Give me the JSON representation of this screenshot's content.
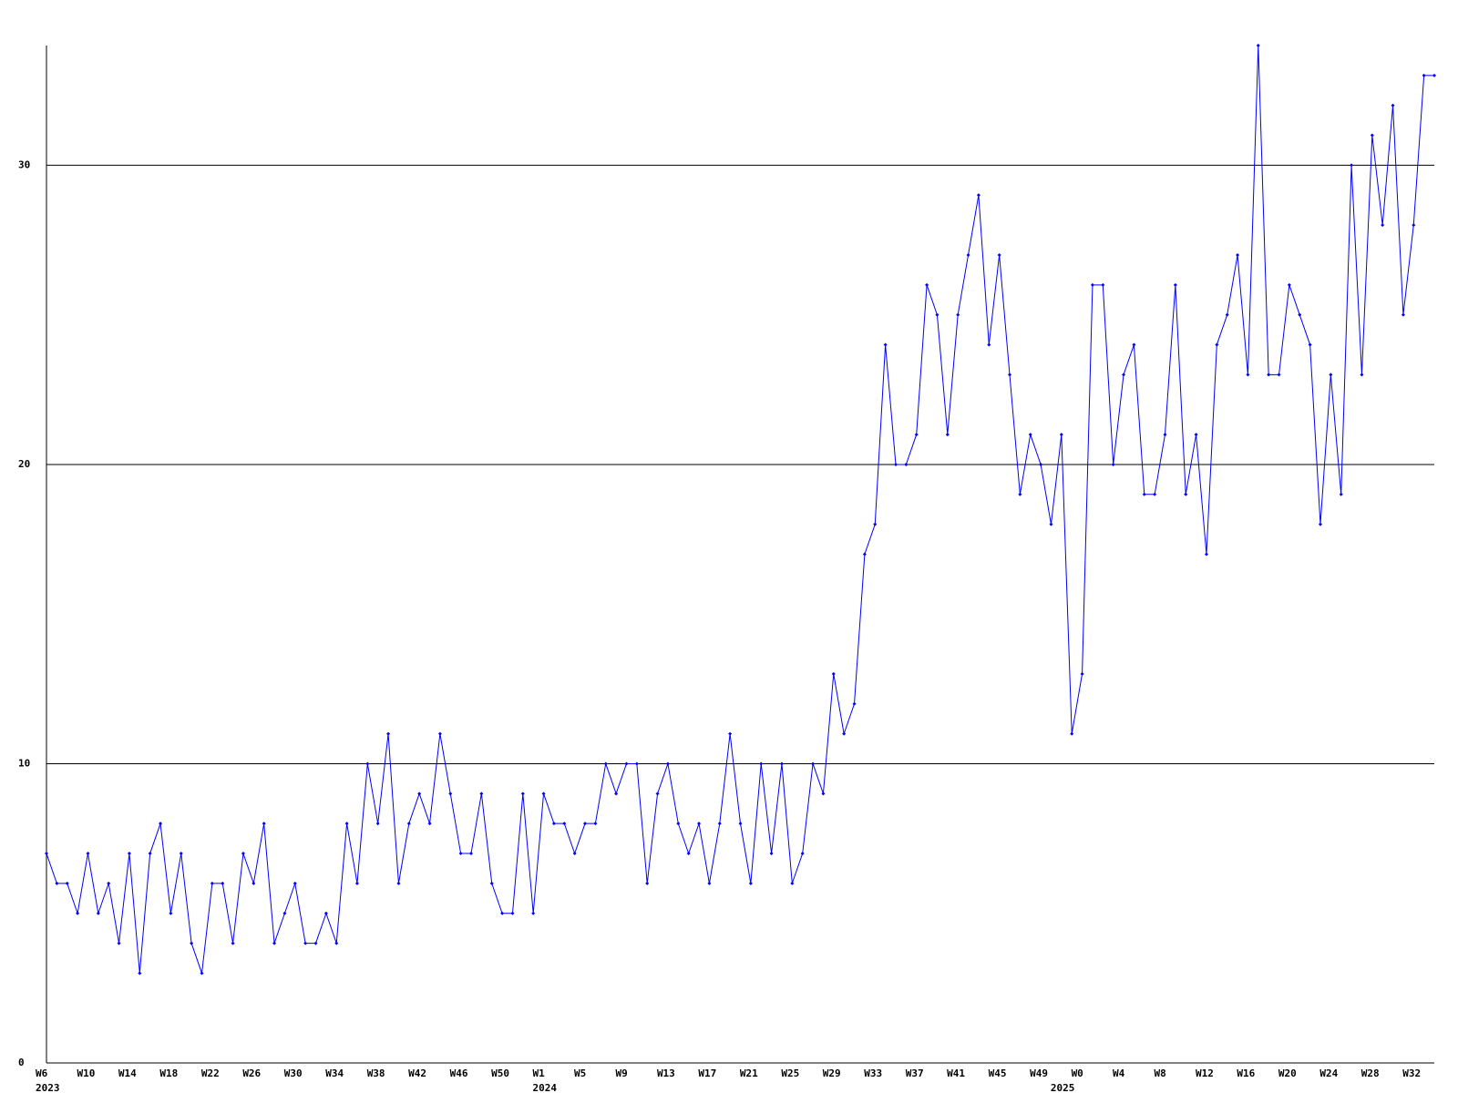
{
  "chart_data": {
    "type": "line",
    "categories": [
      "W6",
      null,
      null,
      null,
      "W10",
      null,
      null,
      null,
      "W14",
      null,
      null,
      null,
      "W18",
      null,
      null,
      null,
      "W22",
      null,
      null,
      null,
      "W26",
      null,
      null,
      null,
      "W30",
      null,
      null,
      null,
      "W34",
      null,
      null,
      null,
      "W38",
      null,
      null,
      null,
      "W42",
      null,
      null,
      null,
      "W46",
      null,
      null,
      null,
      "W50",
      null,
      null,
      null,
      "W1",
      null,
      null,
      null,
      "W5",
      null,
      null,
      null,
      "W9",
      null,
      null,
      null,
      "W13",
      null,
      null,
      null,
      "W17",
      null,
      null,
      null,
      "W21",
      null,
      null,
      null,
      "W25",
      null,
      null,
      null,
      "W29",
      null,
      null,
      null,
      "W33",
      null,
      null,
      null,
      "W37",
      null,
      null,
      null,
      "W41",
      null,
      null,
      null,
      "W45",
      null,
      null,
      null,
      "W49",
      null,
      null,
      null,
      "W0",
      null,
      null,
      null,
      "W4",
      null,
      null,
      null,
      "W8",
      null,
      null,
      null,
      "W12",
      null,
      null,
      null,
      "W16",
      null,
      null,
      null,
      "W20",
      null,
      null,
      null,
      "W24",
      null,
      null,
      null,
      "W28",
      null,
      null,
      null,
      "W32",
      null,
      null
    ],
    "x_year_labels": [
      "2023",
      null,
      null,
      null,
      null,
      null,
      null,
      null,
      null,
      null,
      null,
      null,
      null,
      null,
      null,
      null,
      null,
      null,
      null,
      null,
      null,
      null,
      null,
      null,
      null,
      null,
      null,
      null,
      null,
      null,
      null,
      null,
      null,
      null,
      null,
      null,
      null,
      null,
      null,
      null,
      null,
      null,
      null,
      null,
      null,
      null,
      null,
      null,
      "2024",
      null,
      null,
      null,
      null,
      null,
      null,
      null,
      null,
      null,
      null,
      null,
      null,
      null,
      null,
      null,
      null,
      null,
      null,
      null,
      null,
      null,
      null,
      null,
      null,
      null,
      null,
      null,
      null,
      null,
      null,
      null,
      null,
      null,
      null,
      null,
      null,
      null,
      null,
      null,
      null,
      null,
      null,
      null,
      null,
      null,
      null,
      null,
      null,
      null,
      "2025",
      null,
      null,
      null,
      null,
      null,
      null,
      null,
      null,
      null,
      null,
      null,
      null,
      null,
      null,
      null,
      null,
      null,
      null,
      null,
      null,
      null,
      null,
      null,
      null,
      null,
      null,
      null,
      null,
      null,
      null,
      null,
      null,
      null,
      null
    ],
    "series": [
      {
        "color": "#0000ff",
        "values": [
          7,
          6,
          6,
          5,
          7,
          5,
          6,
          4,
          7,
          3,
          7,
          8,
          5,
          7,
          4,
          3,
          6,
          6,
          4,
          7,
          6,
          8,
          4,
          5,
          6,
          4,
          4,
          5,
          4,
          8,
          6,
          10,
          8,
          11,
          6,
          8,
          9,
          8,
          11,
          9,
          7,
          7,
          9,
          6,
          5,
          5,
          9,
          5,
          9,
          8,
          8,
          7,
          8,
          8,
          10,
          9,
          10,
          10,
          6,
          9,
          10,
          8,
          7,
          8,
          6,
          8,
          11,
          8,
          6,
          10,
          7,
          10,
          6,
          7,
          10,
          9,
          13,
          11,
          12,
          17,
          18,
          24,
          20,
          20,
          21,
          26,
          25,
          21,
          25,
          27,
          29,
          24,
          27,
          23,
          19,
          21,
          20,
          18,
          21,
          11,
          13,
          26,
          26,
          20,
          23,
          24,
          19,
          19,
          21,
          26,
          19,
          21,
          17,
          24,
          25,
          27,
          23,
          34,
          23,
          23,
          26,
          25,
          24,
          18,
          23,
          19,
          30,
          23,
          31,
          28,
          32,
          25,
          28,
          33,
          33
        ]
      }
    ],
    "ylim": [
      0,
      34
    ],
    "yticks": [
      0,
      10,
      20,
      30
    ],
    "grid": true
  }
}
